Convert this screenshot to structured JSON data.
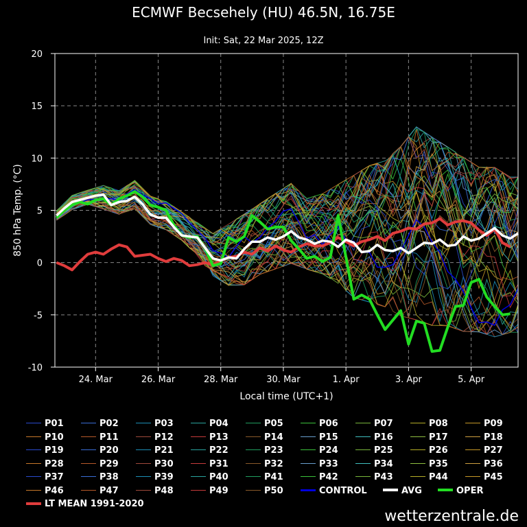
{
  "header": {
    "title": "ECMWF Becsehely (HU) 46.5N, 16.75E",
    "subtitle": "Init: Sat, 22 Mar 2025, 12Z"
  },
  "footer": {
    "credit": "wetterzentrale.de"
  },
  "chart_data": {
    "type": "line",
    "title": "ECMWF Becsehely (HU) 46.5N, 16.75E",
    "subtitle": "Init: Sat, 22 Mar 2025, 12Z",
    "xlabel": "Local time (UTC+1)",
    "ylabel": "850 hPa Temp. (°C)",
    "ylim": [
      -10,
      20
    ],
    "yticks": [
      -10,
      -5,
      0,
      5,
      10,
      15,
      20
    ],
    "x_unit": "days since 22 Mar 2025 00:00",
    "xlim": [
      0.7,
      15.5
    ],
    "xticks": [
      {
        "x": 2,
        "label": "24. Mar"
      },
      {
        "x": 4,
        "label": "26. Mar"
      },
      {
        "x": 6,
        "label": "28. Mar"
      },
      {
        "x": 8,
        "label": "30. Mar"
      },
      {
        "x": 10,
        "label": "1. Apr"
      },
      {
        "x": 12,
        "label": "3. Apr"
      },
      {
        "x": 14,
        "label": "5. Apr"
      }
    ],
    "grid": true,
    "ensemble_members": [
      "P01",
      "P02",
      "P03",
      "P04",
      "P05",
      "P06",
      "P07",
      "P08",
      "P09",
      "P10",
      "P11",
      "P12",
      "P13",
      "P14",
      "P15",
      "P16",
      "P17",
      "P18",
      "P19",
      "P20",
      "P21",
      "P22",
      "P23",
      "P24",
      "P25",
      "P26",
      "P27",
      "P28",
      "P29",
      "P30",
      "P31",
      "P32",
      "P33",
      "P34",
      "P35",
      "P36",
      "P37",
      "P38",
      "P39",
      "P40",
      "P41",
      "P42",
      "P43",
      "P44",
      "P45",
      "P46",
      "P47",
      "P48",
      "P49",
      "P50"
    ],
    "ensemble_spread": {
      "x": [
        0.75,
        1.25,
        1.75,
        2.25,
        2.75,
        3.25,
        3.75,
        4.25,
        4.75,
        5.25,
        5.75,
        6.25,
        6.75,
        7.25,
        7.75,
        8.25,
        8.75,
        9.25,
        9.75,
        10.25,
        10.75,
        11.25,
        11.75,
        12.25,
        12.75,
        13.25,
        13.75,
        14.25,
        14.75,
        15.25
      ],
      "min": [
        4,
        5,
        5.5,
        5,
        4.5,
        5,
        3.5,
        3,
        2,
        0.5,
        -1.5,
        -2.5,
        -2.5,
        -1.5,
        -1,
        -0.5,
        -1,
        -1.5,
        -2.5,
        -4,
        -4.5,
        -5,
        -6,
        -6.5,
        -7,
        -7,
        -7.5,
        -7.5,
        -8,
        -7.5
      ],
      "max": [
        5,
        6.5,
        7,
        7.5,
        7,
        8,
        6.5,
        6,
        5,
        4,
        3,
        4,
        5,
        6,
        7,
        8,
        6.5,
        7,
        8,
        9,
        10,
        10.5,
        12,
        14,
        13,
        12,
        11,
        10,
        10,
        9
      ]
    },
    "series": [
      {
        "name": "AVG",
        "color": "#ffffff",
        "values": [
          [
            0.75,
            4.5
          ],
          [
            1,
            5.2
          ],
          [
            1.25,
            5.8
          ],
          [
            1.5,
            6
          ],
          [
            1.75,
            6.2
          ],
          [
            2,
            6.4
          ],
          [
            2.25,
            6.5
          ],
          [
            2.5,
            5.5
          ],
          [
            2.75,
            5.8
          ],
          [
            3,
            5.9
          ],
          [
            3.25,
            6.3
          ],
          [
            3.5,
            5.6
          ],
          [
            3.75,
            4.6
          ],
          [
            4,
            4.3
          ],
          [
            4.25,
            4.3
          ],
          [
            4.5,
            3.4
          ],
          [
            4.75,
            2.6
          ],
          [
            5,
            2.5
          ],
          [
            5.25,
            2.4
          ],
          [
            5.5,
            1.4
          ],
          [
            5.75,
            0.4
          ],
          [
            6,
            0.2
          ],
          [
            6.25,
            0.5
          ],
          [
            6.5,
            0.4
          ],
          [
            6.75,
            1.3
          ],
          [
            7,
            2
          ],
          [
            7.25,
            2
          ],
          [
            7.5,
            2.4
          ],
          [
            7.75,
            2.2
          ],
          [
            8,
            2.5
          ],
          [
            8.25,
            3
          ],
          [
            8.5,
            2.4
          ],
          [
            8.75,
            2.2
          ],
          [
            9,
            1.8
          ],
          [
            9.25,
            2.1
          ],
          [
            9.5,
            2
          ],
          [
            9.75,
            1.5
          ],
          [
            10,
            2.2
          ],
          [
            10.25,
            1.9
          ],
          [
            10.5,
            1
          ],
          [
            10.75,
            1.1
          ],
          [
            11,
            1.7
          ],
          [
            11.25,
            1.2
          ],
          [
            11.5,
            1.1
          ],
          [
            11.75,
            1.4
          ],
          [
            12,
            0.9
          ],
          [
            12.25,
            1.4
          ],
          [
            12.5,
            1.9
          ],
          [
            12.75,
            1.8
          ],
          [
            13,
            2.2
          ],
          [
            13.25,
            1.6
          ],
          [
            13.5,
            1.7
          ],
          [
            13.75,
            2.5
          ],
          [
            14,
            2.1
          ],
          [
            14.25,
            2.3
          ],
          [
            14.5,
            2.8
          ],
          [
            14.75,
            3.3
          ],
          [
            15,
            2.6
          ],
          [
            15.25,
            2.3
          ],
          [
            15.5,
            2.8
          ]
        ]
      },
      {
        "name": "OPER",
        "color": "#22dd22",
        "values": [
          [
            0.75,
            4.3
          ],
          [
            1,
            5
          ],
          [
            1.25,
            5.5
          ],
          [
            1.5,
            5.8
          ],
          [
            1.75,
            5.6
          ],
          [
            2,
            6
          ],
          [
            2.25,
            6.1
          ],
          [
            2.5,
            5.5
          ],
          [
            2.75,
            6.1
          ],
          [
            3,
            6.4
          ],
          [
            3.25,
            6.8
          ],
          [
            3.5,
            6.3
          ],
          [
            3.75,
            5.5
          ],
          [
            4,
            5.3
          ],
          [
            4.25,
            5
          ],
          [
            4.5,
            3.6
          ],
          [
            4.75,
            2.6
          ],
          [
            5,
            2.4
          ],
          [
            5.25,
            2.5
          ],
          [
            5.5,
            1.4
          ],
          [
            5.75,
            -0.3
          ],
          [
            6,
            -0.1
          ],
          [
            6.25,
            2.4
          ],
          [
            6.5,
            2
          ],
          [
            6.75,
            2.5
          ],
          [
            7,
            4.5
          ],
          [
            7.25,
            3.9
          ],
          [
            7.5,
            3.2
          ],
          [
            7.75,
            3.4
          ],
          [
            8,
            3.4
          ],
          [
            8.25,
            2.1
          ],
          [
            8.5,
            1.3
          ],
          [
            8.75,
            0.4
          ],
          [
            9,
            0.6
          ],
          [
            9.25,
            0.1
          ],
          [
            9.5,
            0.5
          ],
          [
            9.75,
            4.5
          ],
          [
            10,
            0.5
          ],
          [
            10.25,
            -3.5
          ],
          [
            10.5,
            -3.1
          ],
          [
            10.75,
            -3.5
          ],
          [
            11,
            -5
          ],
          [
            11.25,
            -6.4
          ],
          [
            11.5,
            -5.5
          ],
          [
            11.75,
            -4.6
          ],
          [
            12,
            -7.8
          ],
          [
            12.25,
            -5.6
          ],
          [
            12.5,
            -5.8
          ],
          [
            12.75,
            -8.5
          ],
          [
            13,
            -8.4
          ],
          [
            13.25,
            -6.2
          ],
          [
            13.5,
            -4.2
          ],
          [
            13.75,
            -4.1
          ],
          [
            14,
            -1.9
          ],
          [
            14.25,
            -1.6
          ],
          [
            14.5,
            -3.3
          ],
          [
            14.75,
            -4.2
          ],
          [
            15,
            -5
          ],
          [
            15.25,
            -4.9
          ]
        ]
      },
      {
        "name": "LT MEAN 1991-2020",
        "color": "#e03c3c",
        "values": [
          [
            0.75,
            0
          ],
          [
            1,
            -0.3
          ],
          [
            1.25,
            -0.7
          ],
          [
            1.5,
            0.1
          ],
          [
            1.75,
            0.8
          ],
          [
            2,
            1
          ],
          [
            2.25,
            0.8
          ],
          [
            2.5,
            1.3
          ],
          [
            2.75,
            1.7
          ],
          [
            3,
            1.5
          ],
          [
            3.25,
            0.6
          ],
          [
            3.5,
            0.7
          ],
          [
            3.75,
            0.8
          ],
          [
            4,
            0.4
          ],
          [
            4.25,
            0.1
          ],
          [
            4.5,
            0.4
          ],
          [
            4.75,
            0.2
          ],
          [
            5,
            -0.3
          ],
          [
            5.25,
            -0.2
          ],
          [
            5.5,
            0
          ],
          [
            5.75,
            -0.2
          ],
          [
            6,
            0.2
          ],
          [
            6.25,
            0.5
          ],
          [
            6.5,
            0.6
          ],
          [
            6.75,
            1
          ],
          [
            7,
            0.8
          ],
          [
            7.25,
            1.4
          ],
          [
            7.5,
            1.1
          ],
          [
            7.75,
            1.6
          ],
          [
            8,
            1.2
          ],
          [
            8.25,
            1
          ],
          [
            8.5,
            1.5
          ],
          [
            8.75,
            1.8
          ],
          [
            9,
            1.6
          ],
          [
            9.25,
            1.6
          ],
          [
            9.5,
            1.9
          ],
          [
            9.75,
            2.4
          ],
          [
            10,
            2
          ],
          [
            10.25,
            1.6
          ],
          [
            10.5,
            2
          ],
          [
            10.75,
            2.2
          ],
          [
            11,
            2.5
          ],
          [
            11.25,
            2.1
          ],
          [
            11.5,
            2.8
          ],
          [
            11.75,
            3
          ],
          [
            12,
            3.3
          ],
          [
            12.25,
            3.2
          ],
          [
            12.5,
            3.7
          ],
          [
            12.75,
            3.8
          ],
          [
            13,
            4.2
          ],
          [
            13.25,
            3.6
          ],
          [
            13.5,
            3.9
          ],
          [
            13.75,
            4
          ],
          [
            14,
            3.8
          ],
          [
            14.25,
            3.1
          ],
          [
            14.5,
            2.6
          ],
          [
            14.75,
            3.2
          ],
          [
            15,
            1.9
          ],
          [
            15.25,
            1.5
          ]
        ]
      }
    ],
    "control_color": "#0000dd",
    "legend": [
      {
        "label": "CONTROL",
        "color": "#0000dd",
        "width": 3
      },
      {
        "label": "AVG",
        "color": "#ffffff",
        "width": 4
      },
      {
        "label": "OPER",
        "color": "#22dd22",
        "width": 4
      },
      {
        "label": "LT MEAN 1991-2020",
        "color": "#e03c3c",
        "width": 4
      }
    ]
  }
}
